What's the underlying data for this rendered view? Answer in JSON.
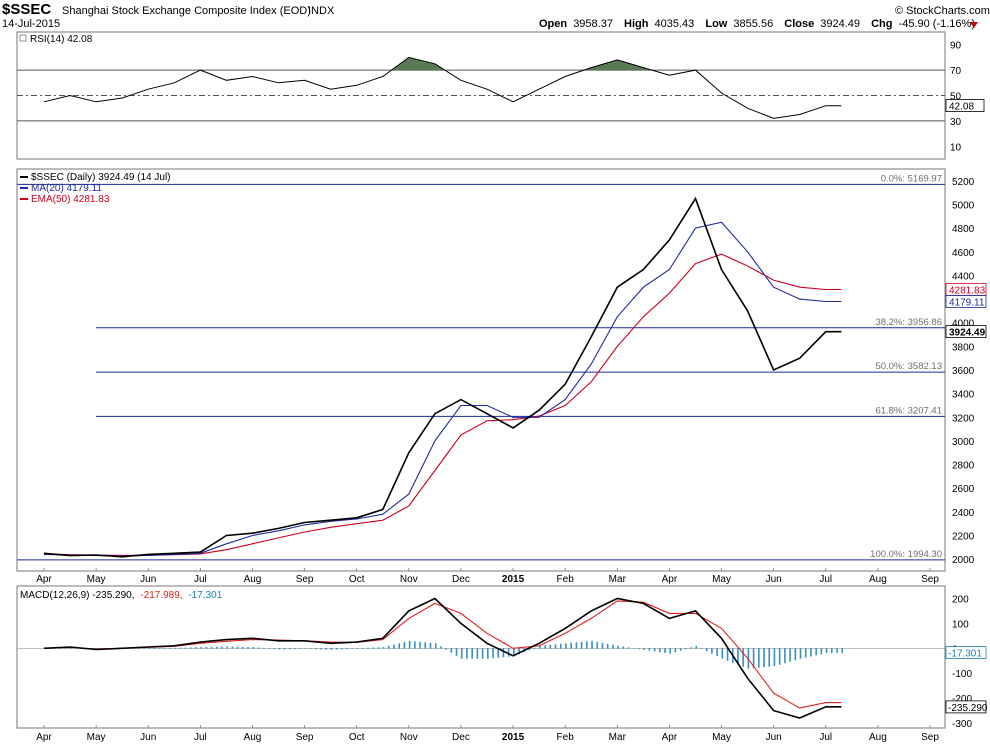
{
  "header": {
    "symbol": "$SSEC",
    "title": "Shanghai Stock Exchange Composite Index (EOD)",
    "exchange": "INDX",
    "date": "14-Jul-2015",
    "brand": "© StockCharts.com",
    "open_label": "Open",
    "open": "3958.37",
    "high_label": "High",
    "high": "4035.43",
    "low_label": "Low",
    "low": "3855.56",
    "close_label": "Close",
    "close": "3924.49",
    "chg_label": "Chg",
    "chg": "-45.90 (-1.16%)",
    "chg_arrow": "down",
    "down_color": "#c00000"
  },
  "rsi_panel": {
    "label": "RSI(14) 42.08",
    "value_box": "42.08",
    "ticks": [
      "90",
      "70",
      "50",
      "30",
      "10"
    ],
    "upper_threshold": 70,
    "lower_threshold": 30,
    "fill_color": "#5a7a55"
  },
  "price_panel": {
    "legend": [
      {
        "text": "$SSEC (Daily) 3924.49 (14 Jul)",
        "color": "#000000",
        "key": "price"
      },
      {
        "text": "MA(20) 4179.11",
        "color": "#1e2a9e",
        "key": "ma"
      },
      {
        "text": "EMA(50) 4281.83",
        "color": "#cc0022",
        "key": "ema"
      }
    ],
    "ticks": [
      "5200",
      "5000",
      "4800",
      "4600",
      "4400",
      "4200",
      "4000",
      "3800",
      "3600",
      "3400",
      "3200",
      "3000",
      "2800",
      "2600",
      "2400",
      "2200",
      "2000"
    ],
    "value_boxes": [
      {
        "text": "4281.83",
        "color": "#cc0022"
      },
      {
        "text": "4179.11",
        "color": "#1e2a9e"
      },
      {
        "text": "3924.49",
        "color": "#000000"
      }
    ],
    "fib_levels": [
      {
        "label": "0.0%: 5169.97",
        "value": 5169.97
      },
      {
        "label": "38.2%: 3956.86",
        "value": 3956.86
      },
      {
        "label": "50.0%: 3582.13",
        "value": 3582.13
      },
      {
        "label": "61.8%: 3207.41",
        "value": 3207.41
      },
      {
        "label": "100.0%: 1994.30",
        "value": 1994.3
      }
    ]
  },
  "macd_panel": {
    "label_main": "MACD(12,26,9) -235.290,",
    "label_signal": "-217.989,",
    "label_hist": "-17.301",
    "ticks": [
      "200",
      "100",
      "0",
      "-100",
      "-200",
      "-300"
    ],
    "value_boxes": [
      {
        "text": "-17.301",
        "color": "#1a7fb0"
      },
      {
        "text": "-235.290",
        "color": "#000000"
      }
    ],
    "hist_color": "#3a8fbf",
    "signal_color": "#e02020"
  },
  "x_axis": {
    "months": [
      "Apr",
      "May",
      "Jun",
      "Jul",
      "Aug",
      "Sep",
      "Oct",
      "Nov",
      "Dec",
      "2015",
      "Feb",
      "Mar",
      "Apr",
      "May",
      "Jun",
      "Jul",
      "Aug",
      "Sep"
    ]
  },
  "chart_data": {
    "type": "line",
    "title": "Shanghai Stock Exchange Composite Index (EOD)",
    "x_unit": "months (Apr 2014 – Sep 2015)",
    "x": [
      0,
      0.5,
      1,
      1.5,
      2,
      2.5,
      3,
      3.5,
      4,
      4.5,
      5,
      5.5,
      6,
      6.5,
      7,
      7.5,
      8,
      8.5,
      9,
      9.5,
      10,
      10.5,
      11,
      11.5,
      12,
      12.5,
      13,
      13.5,
      14,
      14.5,
      15,
      15.3
    ],
    "series": [
      {
        "name": "$SSEC",
        "values": [
          2050,
          2030,
          2035,
          2020,
          2040,
          2050,
          2060,
          2200,
          2220,
          2260,
          2310,
          2330,
          2350,
          2420,
          2900,
          3230,
          3350,
          3230,
          3110,
          3260,
          3480,
          3880,
          4300,
          4450,
          4700,
          5050,
          4450,
          4100,
          3600,
          3700,
          3924,
          3924
        ]
      },
      {
        "name": "MA(20)",
        "values": [
          2040,
          2035,
          2030,
          2028,
          2032,
          2040,
          2050,
          2130,
          2200,
          2240,
          2290,
          2320,
          2340,
          2380,
          2550,
          3000,
          3300,
          3300,
          3200,
          3200,
          3350,
          3650,
          4050,
          4300,
          4450,
          4800,
          4850,
          4600,
          4300,
          4200,
          4179,
          4179
        ]
      },
      {
        "name": "EMA(50)",
        "values": [
          2045,
          2038,
          2035,
          2032,
          2034,
          2038,
          2045,
          2080,
          2130,
          2180,
          2230,
          2270,
          2300,
          2330,
          2450,
          2750,
          3050,
          3170,
          3180,
          3210,
          3300,
          3500,
          3800,
          4050,
          4250,
          4500,
          4580,
          4480,
          4360,
          4300,
          4281,
          4281
        ]
      }
    ],
    "rsi_values": [
      45,
      50,
      45,
      48,
      55,
      60,
      70,
      62,
      65,
      60,
      62,
      55,
      58,
      65,
      80,
      75,
      62,
      55,
      45,
      55,
      65,
      72,
      78,
      72,
      66,
      70,
      52,
      40,
      32,
      35,
      42,
      42
    ],
    "macd_values": [
      0,
      5,
      -5,
      0,
      5,
      10,
      25,
      35,
      40,
      30,
      30,
      20,
      25,
      40,
      150,
      200,
      100,
      20,
      -30,
      20,
      80,
      150,
      200,
      180,
      120,
      150,
      40,
      -120,
      -250,
      -280,
      -235,
      -235
    ],
    "signal_values": [
      0,
      3,
      -3,
      0,
      4,
      8,
      20,
      28,
      35,
      33,
      30,
      25,
      24,
      35,
      120,
      180,
      140,
      60,
      0,
      10,
      60,
      120,
      190,
      185,
      140,
      140,
      80,
      -40,
      -180,
      -240,
      -218,
      -218
    ],
    "ylim_price": [
      1900,
      5300
    ],
    "ylim_rsi": [
      0,
      100
    ],
    "ylim_macd": [
      -320,
      250
    ],
    "grid": false,
    "legend_position": "top-left"
  }
}
